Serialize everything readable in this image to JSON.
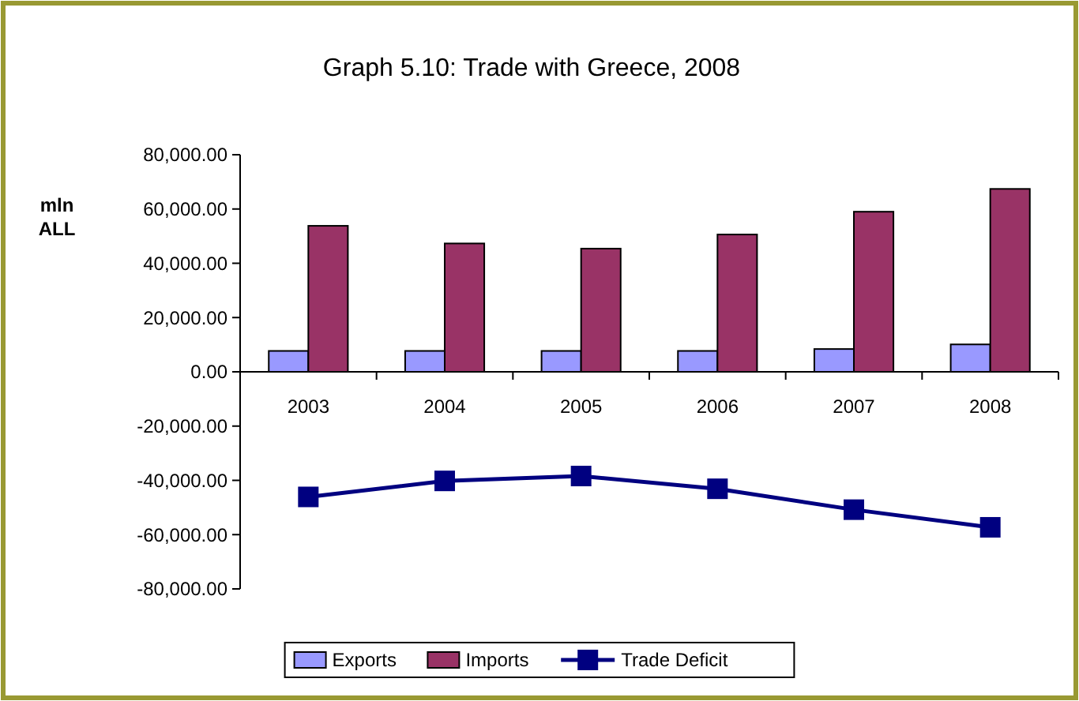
{
  "chart_data": {
    "type": "bar",
    "title": "Graph 5.10: Trade with Greece, 2008",
    "ylabel": "mln ALL",
    "categories": [
      "2003",
      "2004",
      "2005",
      "2006",
      "2007",
      "2008"
    ],
    "series": [
      {
        "name": "Exports",
        "color": "#9999ff",
        "values": [
          7700,
          7700,
          7700,
          7700,
          8400,
          10100
        ]
      },
      {
        "name": "Imports",
        "color": "#993366",
        "values": [
          53800,
          47300,
          45400,
          50600,
          59000,
          67400
        ]
      },
      {
        "name": "Trade Deficit",
        "type": "line",
        "color": "#000080",
        "values": [
          -46100,
          -40200,
          -38400,
          -43100,
          -50800,
          -57300
        ]
      }
    ],
    "ylim": [
      -80000,
      80000
    ],
    "yticks": [
      {
        "value": -80000,
        "label": "-80,000.00"
      },
      {
        "value": -60000,
        "label": "-60,000.00"
      },
      {
        "value": -40000,
        "label": "-40,000.00"
      },
      {
        "value": -20000,
        "label": "-20,000.00"
      },
      {
        "value": 0,
        "label": "0.00"
      },
      {
        "value": 20000,
        "label": "20,000.00"
      },
      {
        "value": 40000,
        "label": "40,000.00"
      },
      {
        "value": 60000,
        "label": "60,000.00"
      },
      {
        "value": 80000,
        "label": "80,000.00"
      }
    ],
    "marker": "square",
    "legend": "bottom",
    "grid": false
  }
}
